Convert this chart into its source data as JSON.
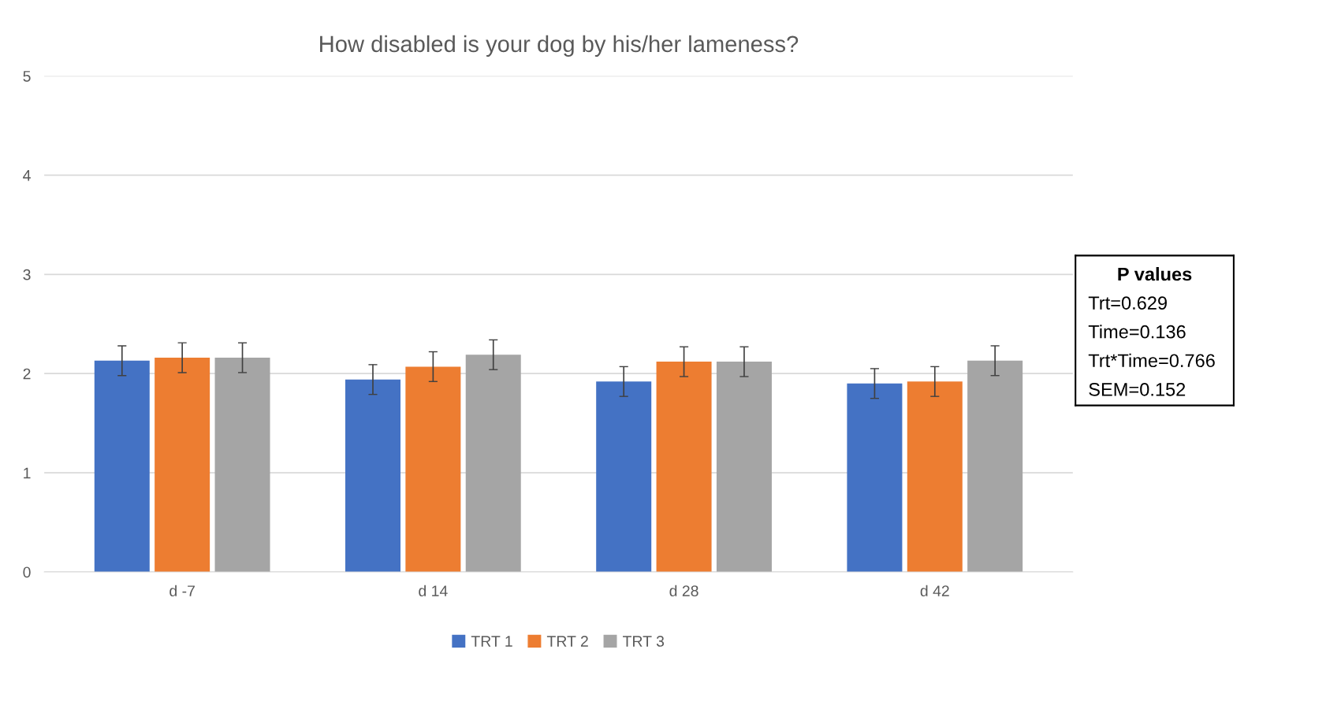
{
  "chart_data": {
    "type": "bar",
    "title": "How disabled is your dog by his/her lameness?",
    "categories": [
      "d -7",
      "d 14",
      "d 28",
      "d 42"
    ],
    "series": [
      {
        "name": "TRT 1",
        "color": "#4472c4",
        "values": [
          2.13,
          1.94,
          1.92,
          1.9
        ],
        "errors": [
          0.15,
          0.15,
          0.15,
          0.15
        ]
      },
      {
        "name": "TRT 2",
        "color": "#ed7d31",
        "values": [
          2.16,
          2.07,
          2.12,
          1.92
        ],
        "errors": [
          0.15,
          0.15,
          0.15,
          0.15
        ]
      },
      {
        "name": "TRT 3",
        "color": "#a5a5a5",
        "values": [
          2.16,
          2.19,
          2.12,
          2.13
        ],
        "errors": [
          0.15,
          0.15,
          0.15,
          0.15
        ]
      }
    ],
    "ylim": [
      0,
      5
    ],
    "yticks": [
      0,
      1,
      2,
      3,
      4,
      5
    ],
    "grid": "y",
    "legend": "bottom",
    "annotations": [
      "P values",
      "Trt=0.629",
      "Time=0.136",
      "Trt*Time=0.766",
      "SEM=0.152"
    ]
  }
}
